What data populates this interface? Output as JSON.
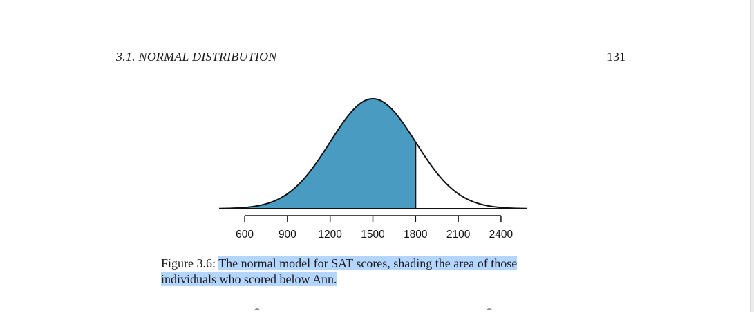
{
  "header": {
    "running_title": "3.1.  NORMAL DISTRIBUTION",
    "page_number": "131"
  },
  "figure": {
    "caption_label": "Figure 3.6:",
    "caption_highlighted_line1": "The normal model for SAT scores, shading the area of those",
    "caption_highlighted_line2": "individuals who scored below Ann.",
    "curve_color": "#111111",
    "shade_color": "#4a9bc1",
    "highlight_color": "#b4d5fe"
  },
  "chart_data": {
    "type": "area",
    "distribution": "normal",
    "mean": 1500,
    "sd": 300,
    "shade_below": 1800,
    "ticks": [
      600,
      900,
      1200,
      1500,
      1800,
      2100,
      2400
    ],
    "tick_labels": [
      "600",
      "900",
      "1200",
      "1500",
      "1800",
      "2100",
      "2400"
    ],
    "xlim": [
      420,
      2580
    ],
    "title": "",
    "xlabel": "",
    "ylabel": ""
  }
}
